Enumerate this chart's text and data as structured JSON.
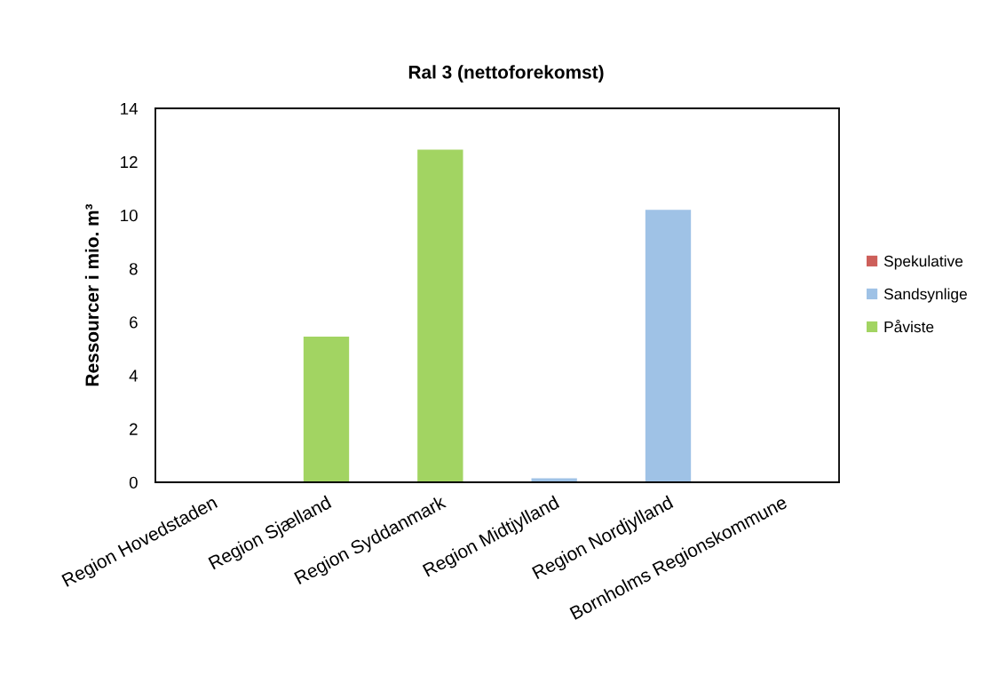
{
  "chart_data": {
    "type": "bar",
    "title": "Ral 3 (nettoforekomst)",
    "ylabel": "Ressourcer i mio. m³",
    "categories": [
      "Region Hovedstaden",
      "Region Sjælland",
      "Region Syddanmark",
      "Region Midtjylland",
      "Region Nordjylland",
      "Bornholms Regionskommune"
    ],
    "stacked": true,
    "series": [
      {
        "name": "Påviste",
        "color": "#a2d462",
        "values": [
          null,
          5.45,
          12.45,
          null,
          null,
          null
        ]
      },
      {
        "name": "Sandsynlige",
        "color": "#9fc2e6",
        "values": [
          null,
          null,
          null,
          0.15,
          10.2,
          null
        ]
      },
      {
        "name": "Spekulative",
        "color": "#cd5f5a",
        "values": [
          null,
          null,
          null,
          null,
          null,
          null
        ]
      }
    ],
    "ylim": [
      0,
      14
    ],
    "yticks": [
      0,
      2,
      4,
      6,
      8,
      10,
      12,
      14
    ],
    "grid": false,
    "legend": "right"
  }
}
